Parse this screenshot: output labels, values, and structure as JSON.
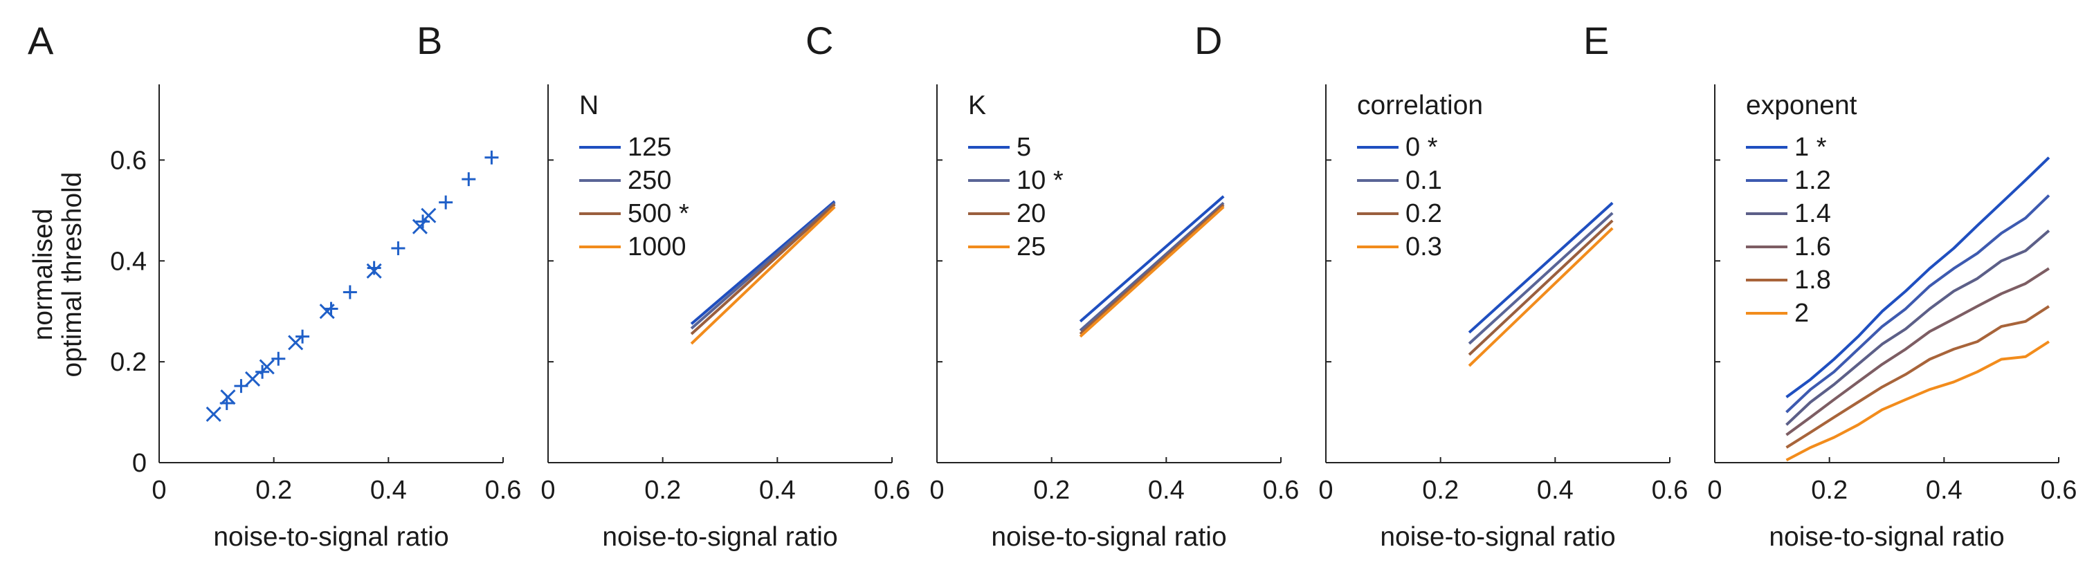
{
  "figure": {
    "ylabel_lines": [
      "normalised",
      "optimal threshold"
    ]
  },
  "chart_data": [
    {
      "type": "scatter",
      "panel": "A",
      "xlabel": "noise-to-signal ratio",
      "xlim": [
        0,
        0.6
      ],
      "ylim": [
        0,
        0.75
      ],
      "xticks": [
        "0",
        "0.2",
        "0.4",
        "0.6"
      ],
      "yticks": [
        "0",
        "0.2",
        "0.4",
        "0.6"
      ],
      "grid": false,
      "color": "#1f5fc8",
      "series": [
        {
          "markers": [
            {
              "marker": "x",
              "x": 0.095,
              "y": 0.096
            },
            {
              "marker": "+",
              "x": 0.118,
              "y": 0.118
            },
            {
              "marker": "x",
              "x": 0.12,
              "y": 0.13
            },
            {
              "marker": "+",
              "x": 0.143,
              "y": 0.152
            },
            {
              "marker": "x",
              "x": 0.163,
              "y": 0.166
            },
            {
              "marker": "+",
              "x": 0.18,
              "y": 0.18
            },
            {
              "marker": "x",
              "x": 0.188,
              "y": 0.19
            },
            {
              "marker": "+",
              "x": 0.208,
              "y": 0.206
            },
            {
              "marker": "x",
              "x": 0.238,
              "y": 0.238
            },
            {
              "marker": "+",
              "x": 0.25,
              "y": 0.25
            },
            {
              "marker": "x",
              "x": 0.293,
              "y": 0.3
            },
            {
              "marker": "+",
              "x": 0.3,
              "y": 0.305
            },
            {
              "marker": "+",
              "x": 0.333,
              "y": 0.338
            },
            {
              "marker": "x",
              "x": 0.375,
              "y": 0.38
            },
            {
              "marker": "+",
              "x": 0.375,
              "y": 0.386
            },
            {
              "marker": "+",
              "x": 0.417,
              "y": 0.425
            },
            {
              "marker": "x",
              "x": 0.455,
              "y": 0.468
            },
            {
              "marker": "+",
              "x": 0.46,
              "y": 0.478
            },
            {
              "marker": "x",
              "x": 0.47,
              "y": 0.49
            },
            {
              "marker": "+",
              "x": 0.5,
              "y": 0.516
            },
            {
              "marker": "+",
              "x": 0.54,
              "y": 0.562
            },
            {
              "marker": "+",
              "x": 0.58,
              "y": 0.605
            }
          ]
        }
      ]
    },
    {
      "type": "line",
      "panel": "B",
      "xlabel": "noise-to-signal ratio",
      "xlim": [
        0,
        0.6
      ],
      "ylim": [
        0,
        0.75
      ],
      "xticks": [
        "0",
        "0.2",
        "0.4",
        "0.6"
      ],
      "grid": false,
      "legend": {
        "title": "N",
        "position": "top-left"
      },
      "series": [
        {
          "name": "125",
          "color": "#1f4fc0",
          "x": [
            0.25,
            0.5
          ],
          "y": [
            0.275,
            0.518
          ]
        },
        {
          "name": "250",
          "color": "#5a6596",
          "x": [
            0.25,
            0.5
          ],
          "y": [
            0.266,
            0.515
          ]
        },
        {
          "name": "500 *",
          "color": "#9a5f3e",
          "x": [
            0.25,
            0.5
          ],
          "y": [
            0.255,
            0.512
          ]
        },
        {
          "name": "1000",
          "color": "#f28c1c",
          "x": [
            0.25,
            0.5
          ],
          "y": [
            0.236,
            0.507
          ]
        }
      ]
    },
    {
      "type": "line",
      "panel": "C",
      "xlabel": "noise-to-signal ratio",
      "xlim": [
        0,
        0.6
      ],
      "ylim": [
        0,
        0.75
      ],
      "xticks": [
        "0",
        "0.2",
        "0.4",
        "0.6"
      ],
      "grid": false,
      "legend": {
        "title": "K",
        "position": "top-left"
      },
      "series": [
        {
          "name": "5",
          "color": "#1f4fc0",
          "x": [
            0.25,
            0.5
          ],
          "y": [
            0.28,
            0.528
          ]
        },
        {
          "name": "10 *",
          "color": "#5a6596",
          "x": [
            0.25,
            0.5
          ],
          "y": [
            0.262,
            0.515
          ]
        },
        {
          "name": "20",
          "color": "#9a5f3e",
          "x": [
            0.25,
            0.5
          ],
          "y": [
            0.255,
            0.511
          ]
        },
        {
          "name": "25",
          "color": "#f28c1c",
          "x": [
            0.25,
            0.5
          ],
          "y": [
            0.25,
            0.507
          ]
        }
      ]
    },
    {
      "type": "line",
      "panel": "D",
      "xlabel": "noise-to-signal ratio",
      "xlim": [
        0,
        0.6
      ],
      "ylim": [
        0,
        0.75
      ],
      "xticks": [
        "0",
        "0.2",
        "0.4",
        "0.6"
      ],
      "grid": false,
      "legend": {
        "title": "correlation",
        "position": "top-left"
      },
      "series": [
        {
          "name": "0 *",
          "color": "#1f4fc0",
          "x": [
            0.25,
            0.5
          ],
          "y": [
            0.258,
            0.515
          ]
        },
        {
          "name": "0.1",
          "color": "#5a6596",
          "x": [
            0.25,
            0.5
          ],
          "y": [
            0.236,
            0.495
          ]
        },
        {
          "name": "0.2",
          "color": "#9a5f3e",
          "x": [
            0.25,
            0.5
          ],
          "y": [
            0.214,
            0.48
          ]
        },
        {
          "name": "0.3",
          "color": "#f28c1c",
          "x": [
            0.25,
            0.5
          ],
          "y": [
            0.192,
            0.465
          ]
        }
      ]
    },
    {
      "type": "line",
      "panel": "E",
      "xlabel": "noise-to-signal ratio",
      "xlim": [
        0,
        0.6
      ],
      "ylim": [
        0,
        0.75
      ],
      "xticks": [
        "0",
        "0.2",
        "0.4",
        "0.6"
      ],
      "grid": false,
      "legend": {
        "title": "exponent",
        "position": "top-left"
      },
      "series": [
        {
          "name": "1 *",
          "color": "#1f4fc0",
          "x": [
            0.125,
            0.167,
            0.208,
            0.25,
            0.292,
            0.333,
            0.375,
            0.417,
            0.458,
            0.5,
            0.542,
            0.583
          ],
          "y": [
            0.13,
            0.165,
            0.205,
            0.25,
            0.3,
            0.34,
            0.385,
            0.425,
            0.47,
            0.515,
            0.56,
            0.605
          ]
        },
        {
          "name": "1.2",
          "color": "#3d5ab0",
          "x": [
            0.125,
            0.167,
            0.208,
            0.25,
            0.292,
            0.333,
            0.375,
            0.417,
            0.458,
            0.5,
            0.542,
            0.583
          ],
          "y": [
            0.1,
            0.145,
            0.18,
            0.225,
            0.27,
            0.305,
            0.35,
            0.385,
            0.415,
            0.455,
            0.485,
            0.53
          ]
        },
        {
          "name": "1.4",
          "color": "#5c5f88",
          "x": [
            0.125,
            0.167,
            0.208,
            0.25,
            0.292,
            0.333,
            0.375,
            0.417,
            0.458,
            0.5,
            0.542,
            0.583
          ],
          "y": [
            0.075,
            0.12,
            0.155,
            0.195,
            0.235,
            0.265,
            0.305,
            0.34,
            0.365,
            0.4,
            0.42,
            0.46
          ]
        },
        {
          "name": "1.6",
          "color": "#7d5d63",
          "x": [
            0.125,
            0.167,
            0.208,
            0.25,
            0.292,
            0.333,
            0.375,
            0.417,
            0.458,
            0.5,
            0.542,
            0.583
          ],
          "y": [
            0.055,
            0.09,
            0.125,
            0.16,
            0.195,
            0.225,
            0.26,
            0.285,
            0.31,
            0.335,
            0.355,
            0.385
          ]
        },
        {
          "name": "1.8",
          "color": "#a8643a",
          "x": [
            0.125,
            0.167,
            0.208,
            0.25,
            0.292,
            0.333,
            0.375,
            0.417,
            0.458,
            0.5,
            0.542,
            0.583
          ],
          "y": [
            0.03,
            0.06,
            0.09,
            0.12,
            0.15,
            0.175,
            0.205,
            0.225,
            0.24,
            0.27,
            0.28,
            0.31
          ]
        },
        {
          "name": "2",
          "color": "#f28c1c",
          "x": [
            0.125,
            0.167,
            0.208,
            0.25,
            0.292,
            0.333,
            0.375,
            0.417,
            0.458,
            0.5,
            0.542,
            0.583
          ],
          "y": [
            0.005,
            0.03,
            0.05,
            0.075,
            0.105,
            0.125,
            0.145,
            0.16,
            0.18,
            0.205,
            0.21,
            0.24
          ]
        }
      ]
    }
  ]
}
